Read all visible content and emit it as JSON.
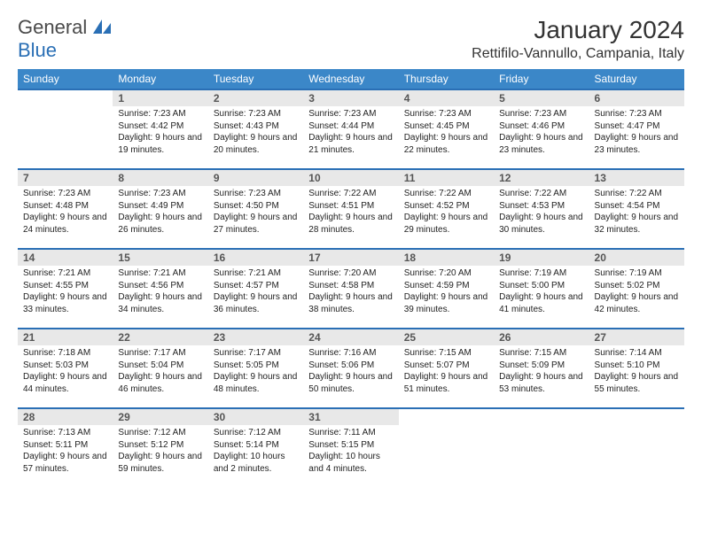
{
  "logo": {
    "part1": "General",
    "part2": "Blue"
  },
  "title": "January 2024",
  "location": "Rettifilo-Vannullo, Campania, Italy",
  "colors": {
    "header_bg": "#3b87c8",
    "border": "#2a6fb5",
    "daynum_bg": "#e8e8e8",
    "text": "#222222"
  },
  "weekdays": [
    "Sunday",
    "Monday",
    "Tuesday",
    "Wednesday",
    "Thursday",
    "Friday",
    "Saturday"
  ],
  "weeks": [
    [
      {
        "n": "",
        "sr": "",
        "ss": "",
        "dl": ""
      },
      {
        "n": "1",
        "sr": "Sunrise: 7:23 AM",
        "ss": "Sunset: 4:42 PM",
        "dl": "Daylight: 9 hours and 19 minutes."
      },
      {
        "n": "2",
        "sr": "Sunrise: 7:23 AM",
        "ss": "Sunset: 4:43 PM",
        "dl": "Daylight: 9 hours and 20 minutes."
      },
      {
        "n": "3",
        "sr": "Sunrise: 7:23 AM",
        "ss": "Sunset: 4:44 PM",
        "dl": "Daylight: 9 hours and 21 minutes."
      },
      {
        "n": "4",
        "sr": "Sunrise: 7:23 AM",
        "ss": "Sunset: 4:45 PM",
        "dl": "Daylight: 9 hours and 22 minutes."
      },
      {
        "n": "5",
        "sr": "Sunrise: 7:23 AM",
        "ss": "Sunset: 4:46 PM",
        "dl": "Daylight: 9 hours and 23 minutes."
      },
      {
        "n": "6",
        "sr": "Sunrise: 7:23 AM",
        "ss": "Sunset: 4:47 PM",
        "dl": "Daylight: 9 hours and 23 minutes."
      }
    ],
    [
      {
        "n": "7",
        "sr": "Sunrise: 7:23 AM",
        "ss": "Sunset: 4:48 PM",
        "dl": "Daylight: 9 hours and 24 minutes."
      },
      {
        "n": "8",
        "sr": "Sunrise: 7:23 AM",
        "ss": "Sunset: 4:49 PM",
        "dl": "Daylight: 9 hours and 26 minutes."
      },
      {
        "n": "9",
        "sr": "Sunrise: 7:23 AM",
        "ss": "Sunset: 4:50 PM",
        "dl": "Daylight: 9 hours and 27 minutes."
      },
      {
        "n": "10",
        "sr": "Sunrise: 7:22 AM",
        "ss": "Sunset: 4:51 PM",
        "dl": "Daylight: 9 hours and 28 minutes."
      },
      {
        "n": "11",
        "sr": "Sunrise: 7:22 AM",
        "ss": "Sunset: 4:52 PM",
        "dl": "Daylight: 9 hours and 29 minutes."
      },
      {
        "n": "12",
        "sr": "Sunrise: 7:22 AM",
        "ss": "Sunset: 4:53 PM",
        "dl": "Daylight: 9 hours and 30 minutes."
      },
      {
        "n": "13",
        "sr": "Sunrise: 7:22 AM",
        "ss": "Sunset: 4:54 PM",
        "dl": "Daylight: 9 hours and 32 minutes."
      }
    ],
    [
      {
        "n": "14",
        "sr": "Sunrise: 7:21 AM",
        "ss": "Sunset: 4:55 PM",
        "dl": "Daylight: 9 hours and 33 minutes."
      },
      {
        "n": "15",
        "sr": "Sunrise: 7:21 AM",
        "ss": "Sunset: 4:56 PM",
        "dl": "Daylight: 9 hours and 34 minutes."
      },
      {
        "n": "16",
        "sr": "Sunrise: 7:21 AM",
        "ss": "Sunset: 4:57 PM",
        "dl": "Daylight: 9 hours and 36 minutes."
      },
      {
        "n": "17",
        "sr": "Sunrise: 7:20 AM",
        "ss": "Sunset: 4:58 PM",
        "dl": "Daylight: 9 hours and 38 minutes."
      },
      {
        "n": "18",
        "sr": "Sunrise: 7:20 AM",
        "ss": "Sunset: 4:59 PM",
        "dl": "Daylight: 9 hours and 39 minutes."
      },
      {
        "n": "19",
        "sr": "Sunrise: 7:19 AM",
        "ss": "Sunset: 5:00 PM",
        "dl": "Daylight: 9 hours and 41 minutes."
      },
      {
        "n": "20",
        "sr": "Sunrise: 7:19 AM",
        "ss": "Sunset: 5:02 PM",
        "dl": "Daylight: 9 hours and 42 minutes."
      }
    ],
    [
      {
        "n": "21",
        "sr": "Sunrise: 7:18 AM",
        "ss": "Sunset: 5:03 PM",
        "dl": "Daylight: 9 hours and 44 minutes."
      },
      {
        "n": "22",
        "sr": "Sunrise: 7:17 AM",
        "ss": "Sunset: 5:04 PM",
        "dl": "Daylight: 9 hours and 46 minutes."
      },
      {
        "n": "23",
        "sr": "Sunrise: 7:17 AM",
        "ss": "Sunset: 5:05 PM",
        "dl": "Daylight: 9 hours and 48 minutes."
      },
      {
        "n": "24",
        "sr": "Sunrise: 7:16 AM",
        "ss": "Sunset: 5:06 PM",
        "dl": "Daylight: 9 hours and 50 minutes."
      },
      {
        "n": "25",
        "sr": "Sunrise: 7:15 AM",
        "ss": "Sunset: 5:07 PM",
        "dl": "Daylight: 9 hours and 51 minutes."
      },
      {
        "n": "26",
        "sr": "Sunrise: 7:15 AM",
        "ss": "Sunset: 5:09 PM",
        "dl": "Daylight: 9 hours and 53 minutes."
      },
      {
        "n": "27",
        "sr": "Sunrise: 7:14 AM",
        "ss": "Sunset: 5:10 PM",
        "dl": "Daylight: 9 hours and 55 minutes."
      }
    ],
    [
      {
        "n": "28",
        "sr": "Sunrise: 7:13 AM",
        "ss": "Sunset: 5:11 PM",
        "dl": "Daylight: 9 hours and 57 minutes."
      },
      {
        "n": "29",
        "sr": "Sunrise: 7:12 AM",
        "ss": "Sunset: 5:12 PM",
        "dl": "Daylight: 9 hours and 59 minutes."
      },
      {
        "n": "30",
        "sr": "Sunrise: 7:12 AM",
        "ss": "Sunset: 5:14 PM",
        "dl": "Daylight: 10 hours and 2 minutes."
      },
      {
        "n": "31",
        "sr": "Sunrise: 7:11 AM",
        "ss": "Sunset: 5:15 PM",
        "dl": "Daylight: 10 hours and 4 minutes."
      },
      {
        "n": "",
        "sr": "",
        "ss": "",
        "dl": ""
      },
      {
        "n": "",
        "sr": "",
        "ss": "",
        "dl": ""
      },
      {
        "n": "",
        "sr": "",
        "ss": "",
        "dl": ""
      }
    ]
  ]
}
